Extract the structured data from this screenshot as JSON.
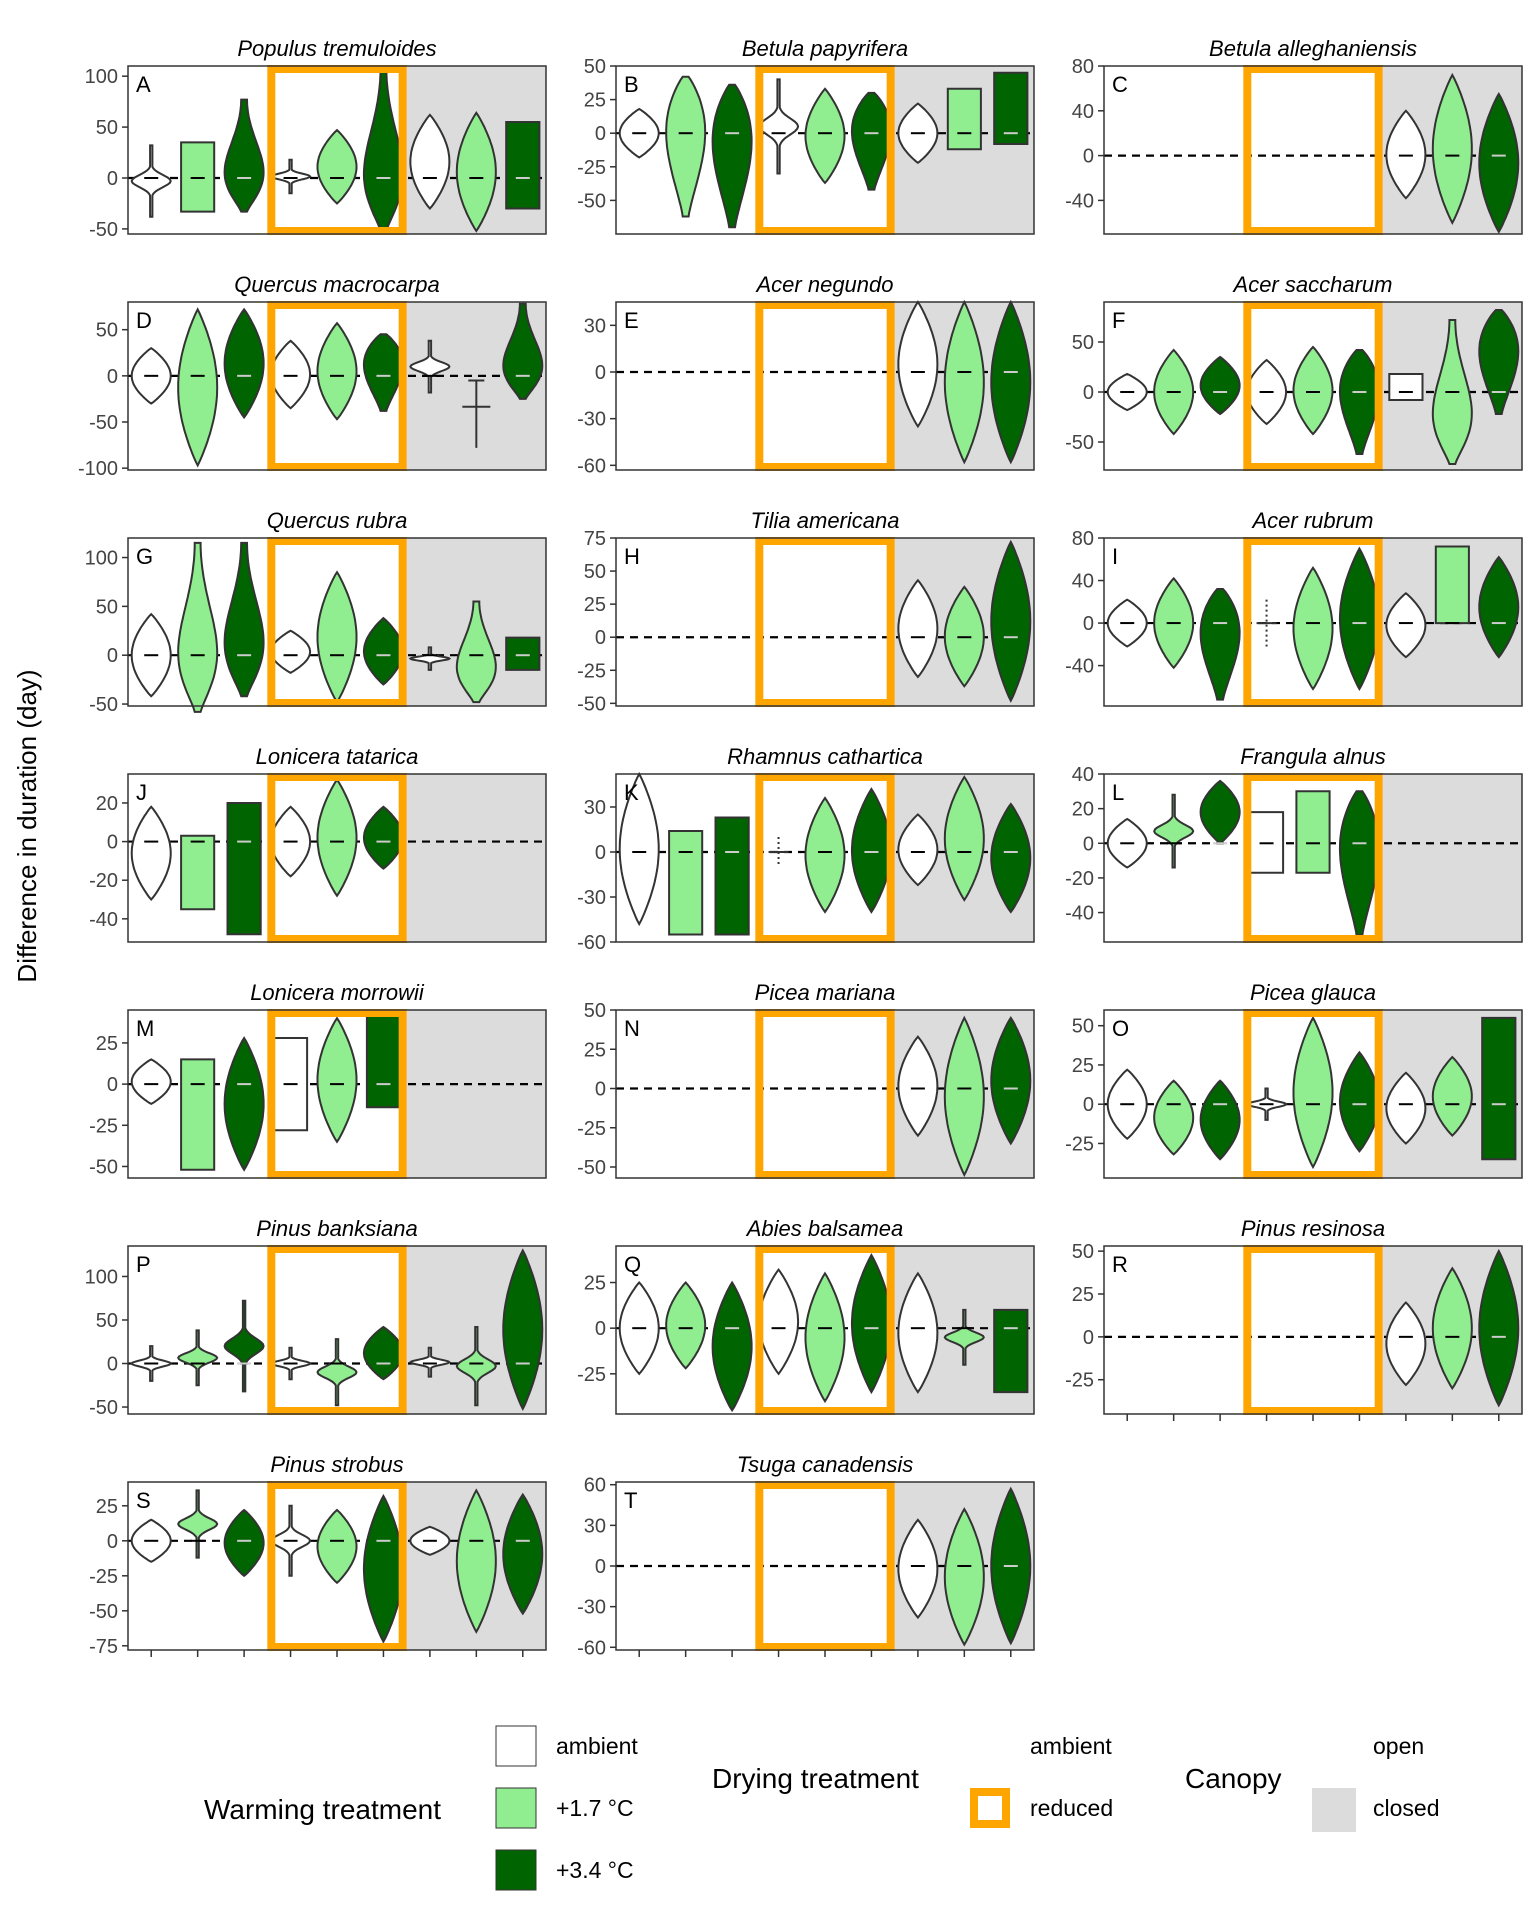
{
  "figure": {
    "ylabel": "Difference in duration (day)"
  },
  "colors": {
    "ambient": "#ffffff",
    "warm17": "#90ee90",
    "warm34": "#006400",
    "reduced_drying": "#ffa500",
    "closed_canopy": "#dcdcdc",
    "outline": "#333333"
  },
  "legend": {
    "warming": {
      "title": "Warming treatment",
      "items": [
        {
          "label": "ambient",
          "color": "#ffffff"
        },
        {
          "label": "+1.7 °C",
          "color": "#90ee90"
        },
        {
          "label": "+3.4 °C",
          "color": "#006400"
        }
      ]
    },
    "drying": {
      "title": "Drying treatment",
      "items": [
        {
          "label": "ambient"
        },
        {
          "label": "reduced",
          "color": "#ffa500"
        }
      ]
    },
    "canopy": {
      "title": "Canopy",
      "items": [
        {
          "label": "open"
        },
        {
          "label": "closed",
          "color": "#dcdcdc"
        }
      ]
    }
  },
  "chart_data": [
    {
      "type": "violin",
      "letter": "A",
      "title": "Populus tremuloides",
      "ylim": [
        -55,
        110
      ],
      "yticks": [
        -50,
        0,
        50,
        100
      ],
      "groups": [
        "open-ambient",
        "open-reduced",
        "closed-ambient"
      ],
      "violins": [
        [
          -38,
          32,
          "spindle"
        ],
        [
          -33,
          35,
          "flat"
        ],
        [
          -33,
          77,
          "bottom"
        ],
        [
          -15,
          18,
          "spindle"
        ],
        [
          -25,
          47,
          "mid"
        ],
        [
          -52,
          107,
          "bottom"
        ],
        [
          -30,
          62,
          "mid"
        ],
        [
          -52,
          64,
          "mid"
        ],
        [
          -30,
          55,
          "flat"
        ]
      ]
    },
    {
      "type": "violin",
      "letter": "B",
      "title": "Betula papyrifera",
      "ylim": [
        -75,
        50
      ],
      "yticks": [
        -50,
        -25,
        0,
        25,
        50
      ],
      "groups": [
        "open-ambient",
        "open-reduced",
        "closed-ambient"
      ],
      "violins": [
        [
          -18,
          18,
          "mid"
        ],
        [
          -62,
          42,
          "top"
        ],
        [
          -70,
          36,
          "top"
        ],
        [
          -30,
          40,
          "spindle"
        ],
        [
          -37,
          33,
          "mid"
        ],
        [
          -42,
          30,
          "top"
        ],
        [
          -22,
          22,
          "mid"
        ],
        [
          -12,
          33,
          "flat"
        ],
        [
          -8,
          45,
          "flat"
        ]
      ]
    },
    {
      "type": "violin",
      "letter": "C",
      "title": "Betula alleghaniensis",
      "ylim": [
        -70,
        80
      ],
      "yticks": [
        -40,
        0,
        40,
        80
      ],
      "groups": [
        "open-ambient",
        "open-reduced",
        "closed-ambient"
      ],
      "violins": [
        null,
        null,
        null,
        null,
        null,
        null,
        [
          -38,
          40,
          "mid"
        ],
        [
          -60,
          72,
          "mid"
        ],
        [
          -68,
          55,
          "mid"
        ]
      ]
    },
    {
      "type": "violin",
      "letter": "D",
      "title": "Quercus macrocarpa",
      "ylim": [
        -102,
        80
      ],
      "yticks": [
        -100,
        -50,
        0,
        50
      ],
      "groups": [
        "open-ambient",
        "open-reduced",
        "closed-ambient"
      ],
      "violins": [
        [
          -30,
          30,
          "mid"
        ],
        [
          -97,
          72,
          "mid"
        ],
        [
          -45,
          72,
          "mid"
        ],
        [
          -35,
          38,
          "mid"
        ],
        [
          -47,
          57,
          "mid"
        ],
        [
          -38,
          45,
          "top"
        ],
        [
          -18,
          38,
          "spindle"
        ],
        [
          -78,
          -5,
          "whisker"
        ],
        [
          -25,
          78,
          "bottom"
        ]
      ]
    },
    {
      "type": "violin",
      "letter": "E",
      "title": "Acer negundo",
      "ylim": [
        -63,
        45
      ],
      "yticks": [
        -60,
        -30,
        0,
        30
      ],
      "groups": [
        "open-ambient",
        "open-reduced",
        "closed-ambient"
      ],
      "violins": [
        null,
        null,
        null,
        null,
        null,
        null,
        [
          -35,
          45,
          "mid"
        ],
        [
          -58,
          45,
          "mid"
        ],
        [
          -58,
          45,
          "mid"
        ]
      ]
    },
    {
      "type": "violin",
      "letter": "F",
      "title": "Acer saccharum",
      "ylim": [
        -78,
        90
      ],
      "yticks": [
        -50,
        0,
        50
      ],
      "groups": [
        "open-ambient",
        "open-reduced",
        "closed-ambient"
      ],
      "violins": [
        [
          -18,
          18,
          "mid"
        ],
        [
          -42,
          42,
          "mid"
        ],
        [
          -22,
          35,
          "mid"
        ],
        [
          -32,
          32,
          "mid"
        ],
        [
          -42,
          45,
          "mid"
        ],
        [
          -62,
          42,
          "top"
        ],
        [
          -8,
          18,
          "flat"
        ],
        [
          -72,
          72,
          "bottom"
        ],
        [
          -22,
          82,
          "top"
        ]
      ]
    },
    {
      "type": "violin",
      "letter": "G",
      "title": "Quercus rubra",
      "ylim": [
        -52,
        120
      ],
      "yticks": [
        -50,
        0,
        50,
        100
      ],
      "groups": [
        "open-ambient",
        "open-reduced",
        "closed-ambient"
      ],
      "violins": [
        [
          -42,
          42,
          "mid"
        ],
        [
          -58,
          115,
          "bottom"
        ],
        [
          -42,
          115,
          "bottom"
        ],
        [
          -18,
          25,
          "mid"
        ],
        [
          -48,
          85,
          "mid"
        ],
        [
          -30,
          38,
          "mid"
        ],
        [
          -15,
          8,
          "spindle"
        ],
        [
          -48,
          55,
          "bottom"
        ],
        [
          -15,
          18,
          "flat"
        ]
      ]
    },
    {
      "type": "violin",
      "letter": "H",
      "title": "Tilia americana",
      "ylim": [
        -52,
        75
      ],
      "yticks": [
        -50,
        -25,
        0,
        25,
        50,
        75
      ],
      "groups": [
        "open-ambient",
        "open-reduced",
        "closed-ambient"
      ],
      "violins": [
        null,
        null,
        null,
        null,
        null,
        null,
        [
          -30,
          43,
          "mid"
        ],
        [
          -37,
          38,
          "mid"
        ],
        [
          -48,
          72,
          "mid"
        ]
      ]
    },
    {
      "type": "violin",
      "letter": "I",
      "title": "Acer rubrum",
      "ylim": [
        -78,
        80
      ],
      "yticks": [
        -40,
        0,
        40,
        80
      ],
      "groups": [
        "open-ambient",
        "open-reduced",
        "closed-ambient"
      ],
      "violins": [
        [
          -22,
          22,
          "mid"
        ],
        [
          -42,
          42,
          "mid"
        ],
        [
          -72,
          32,
          "top"
        ],
        [
          -22,
          22,
          "dots"
        ],
        [
          -62,
          52,
          "mid"
        ],
        [
          -62,
          70,
          "mid"
        ],
        [
          -32,
          28,
          "mid"
        ],
        [
          0,
          72,
          "flat"
        ],
        [
          -32,
          62,
          "mid"
        ]
      ]
    },
    {
      "type": "violin",
      "letter": "J",
      "title": "Lonicera tatarica",
      "ylim": [
        -52,
        35
      ],
      "yticks": [
        -40,
        -20,
        0,
        20
      ],
      "groups": [
        "open-ambient",
        "open-reduced",
        "closed-ambient"
      ],
      "violins": [
        [
          -30,
          18,
          "mid"
        ],
        [
          -35,
          3,
          "flat"
        ],
        [
          -48,
          20,
          "flat"
        ],
        [
          -18,
          18,
          "mid"
        ],
        [
          -28,
          32,
          "mid"
        ],
        [
          -14,
          18,
          "mid"
        ],
        null,
        null,
        null
      ]
    },
    {
      "type": "violin",
      "letter": "K",
      "title": "Rhamnus cathartica",
      "ylim": [
        -60,
        52
      ],
      "yticks": [
        -60,
        -30,
        0,
        30
      ],
      "groups": [
        "open-ambient",
        "open-reduced",
        "closed-ambient"
      ],
      "violins": [
        [
          -48,
          52,
          "mid"
        ],
        [
          -55,
          14,
          "flat"
        ],
        [
          -55,
          23,
          "flat"
        ],
        [
          -10,
          10,
          "dots"
        ],
        [
          -40,
          36,
          "mid"
        ],
        [
          -40,
          42,
          "mid"
        ],
        [
          -22,
          25,
          "mid"
        ],
        [
          -32,
          50,
          "mid"
        ],
        [
          -40,
          32,
          "mid"
        ]
      ]
    },
    {
      "type": "violin",
      "letter": "L",
      "title": "Frangula alnus",
      "ylim": [
        -57,
        40
      ],
      "yticks": [
        -40,
        -20,
        0,
        20,
        40
      ],
      "groups": [
        "open-ambient",
        "open-reduced",
        "closed-ambient"
      ],
      "violins": [
        [
          -14,
          14,
          "mid"
        ],
        [
          -14,
          28,
          "spindle"
        ],
        [
          0,
          36,
          "mid"
        ],
        [
          -17,
          18,
          "flat"
        ],
        [
          -17,
          30,
          "flat"
        ],
        [
          -53,
          30,
          "top"
        ],
        null,
        null,
        null
      ]
    },
    {
      "type": "violin",
      "letter": "M",
      "title": "Lonicera morrowii",
      "ylim": [
        -57,
        45
      ],
      "yticks": [
        -50,
        -25,
        0,
        25
      ],
      "groups": [
        "open-ambient",
        "open-reduced",
        "closed-ambient"
      ],
      "violins": [
        [
          -12,
          15,
          "mid"
        ],
        [
          -52,
          15,
          "flat"
        ],
        [
          -52,
          28,
          "mid"
        ],
        [
          -28,
          28,
          "flat"
        ],
        [
          -35,
          40,
          "mid"
        ],
        [
          -14,
          44,
          "flat"
        ],
        null,
        null,
        null
      ]
    },
    {
      "type": "violin",
      "letter": "N",
      "title": "Picea mariana",
      "ylim": [
        -57,
        50
      ],
      "yticks": [
        -50,
        -25,
        0,
        25,
        50
      ],
      "groups": [
        "open-ambient",
        "open-reduced",
        "closed-ambient"
      ],
      "violins": [
        null,
        null,
        null,
        null,
        null,
        null,
        [
          -30,
          33,
          "mid"
        ],
        [
          -55,
          45,
          "mid"
        ],
        [
          -35,
          45,
          "mid"
        ]
      ]
    },
    {
      "type": "violin",
      "letter": "O",
      "title": "Picea glauca",
      "ylim": [
        -47,
        60
      ],
      "yticks": [
        -25,
        0,
        25,
        50
      ],
      "groups": [
        "open-ambient",
        "open-reduced",
        "closed-ambient"
      ],
      "violins": [
        [
          -22,
          22,
          "mid"
        ],
        [
          -32,
          15,
          "mid"
        ],
        [
          -35,
          15,
          "mid"
        ],
        [
          -10,
          10,
          "spindle"
        ],
        [
          -40,
          55,
          "mid"
        ],
        [
          -30,
          33,
          "mid"
        ],
        [
          -25,
          20,
          "mid"
        ],
        [
          -20,
          30,
          "mid"
        ],
        [
          -35,
          55,
          "flat"
        ]
      ]
    },
    {
      "type": "violin",
      "letter": "P",
      "title": "Pinus banksiana",
      "ylim": [
        -58,
        135
      ],
      "yticks": [
        -50,
        0,
        50,
        100
      ],
      "groups": [
        "open-ambient",
        "open-reduced",
        "closed-ambient"
      ],
      "violins": [
        [
          -20,
          20,
          "spindle"
        ],
        [
          -25,
          38,
          "spindle"
        ],
        [
          -32,
          72,
          "spindle"
        ],
        [
          -18,
          18,
          "spindle"
        ],
        [
          -48,
          28,
          "spindle"
        ],
        [
          -18,
          42,
          "mid"
        ],
        [
          -15,
          18,
          "spindle"
        ],
        [
          -48,
          42,
          "spindle"
        ],
        [
          -52,
          130,
          "mid"
        ]
      ]
    },
    {
      "type": "violin",
      "letter": "Q",
      "title": "Abies balsamea",
      "ylim": [
        -47,
        45
      ],
      "yticks": [
        -25,
        0,
        25
      ],
      "groups": [
        "open-ambient",
        "open-reduced",
        "closed-ambient"
      ],
      "violins": [
        [
          -25,
          25,
          "mid"
        ],
        [
          -22,
          25,
          "mid"
        ],
        [
          -45,
          25,
          "mid"
        ],
        [
          -25,
          32,
          "mid"
        ],
        [
          -40,
          30,
          "mid"
        ],
        [
          -35,
          40,
          "mid"
        ],
        [
          -35,
          30,
          "mid"
        ],
        [
          -20,
          10,
          "spindle"
        ],
        [
          -35,
          10,
          "flat"
        ]
      ]
    },
    {
      "type": "violin",
      "letter": "R",
      "title": "Pinus resinosa",
      "ylim": [
        -45,
        53
      ],
      "yticks": [
        -25,
        0,
        25,
        50
      ],
      "groups": [
        "open-ambient",
        "open-reduced",
        "closed-ambient"
      ],
      "violins": [
        null,
        null,
        null,
        null,
        null,
        null,
        [
          -28,
          20,
          "mid"
        ],
        [
          -30,
          40,
          "mid"
        ],
        [
          -40,
          50,
          "mid"
        ]
      ]
    },
    {
      "type": "violin",
      "letter": "S",
      "title": "Pinus strobus",
      "ylim": [
        -78,
        42
      ],
      "yticks": [
        -75,
        -50,
        -25,
        0,
        25
      ],
      "groups": [
        "open-ambient",
        "open-reduced",
        "closed-ambient"
      ],
      "violins": [
        [
          -15,
          15,
          "mid"
        ],
        [
          -12,
          36,
          "spindle"
        ],
        [
          -25,
          22,
          "mid"
        ],
        [
          -25,
          25,
          "spindle"
        ],
        [
          -30,
          22,
          "mid"
        ],
        [
          -72,
          32,
          "mid"
        ],
        [
          -10,
          10,
          "mid"
        ],
        [
          -65,
          36,
          "mid"
        ],
        [
          -52,
          33,
          "mid"
        ]
      ]
    },
    {
      "type": "violin",
      "letter": "T",
      "title": "Tsuga canadensis",
      "ylim": [
        -62,
        62
      ],
      "yticks": [
        -60,
        -30,
        0,
        30,
        60
      ],
      "groups": [
        "open-ambient",
        "open-reduced",
        "closed-ambient"
      ],
      "violins": [
        null,
        null,
        null,
        null,
        null,
        null,
        [
          -38,
          34,
          "mid"
        ],
        [
          -58,
          42,
          "mid"
        ],
        [
          -57,
          57,
          "mid"
        ]
      ]
    }
  ]
}
